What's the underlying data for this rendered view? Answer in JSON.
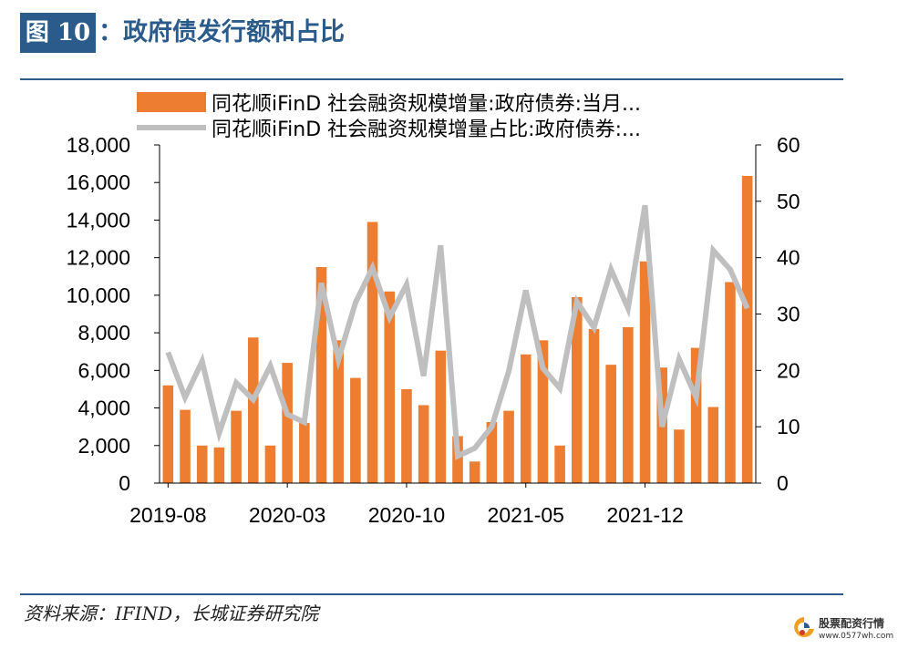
{
  "header": {
    "figure_label": "图 10",
    "colon": "：",
    "title": "政府债发行额和占比"
  },
  "source": "资料来源：IFIND，长城证券研究院",
  "watermark": {
    "name": "股票配资行情",
    "url": "www.0577wh.com"
  },
  "colors": {
    "brand": "#2b5b8a",
    "bar": "#ed7d31",
    "line": "#bfbfbf"
  },
  "chart_data": {
    "type": "bar",
    "x_ticks": [
      "2019-08",
      "2020-03",
      "2020-10",
      "2021-05",
      "2021-12"
    ],
    "y_left": {
      "lim": [
        0,
        18000
      ],
      "ticks": [
        "0",
        "2,000",
        "4,000",
        "6,000",
        "8,000",
        "10,000",
        "12,000",
        "14,000",
        "16,000",
        "18,000"
      ]
    },
    "y_right": {
      "lim": [
        0,
        60
      ],
      "ticks": [
        "0",
        "10",
        "20",
        "30",
        "40",
        "50",
        "60"
      ]
    },
    "legend": {
      "position": "top"
    },
    "series": [
      {
        "name": "同花顺iFinD 社会融资规模增量:政府债券:当月...",
        "type": "bar",
        "axis": "left",
        "values": [
          5200,
          3900,
          2000,
          1900,
          3850,
          7750,
          2000,
          6400,
          3200,
          11500,
          7600,
          5600,
          13900,
          10200,
          5000,
          4150,
          7050,
          2500,
          1150,
          3250,
          3850,
          6850,
          7600,
          2000,
          9900,
          8200,
          6300,
          8300,
          11800,
          6150,
          2850,
          7200,
          4050,
          10700,
          16350
        ]
      },
      {
        "name": "同花顺iFinD 社会融资规模增量占比:政府债券:...",
        "type": "line",
        "axis": "right",
        "values": [
          23.2,
          15.2,
          21.6,
          8.9,
          17.8,
          14.8,
          20.8,
          12.2,
          10.8,
          35.5,
          21.9,
          32.0,
          38.2,
          29.4,
          35.2,
          19.0,
          42.2,
          4.8,
          6.2,
          10.0,
          19.9,
          34.2,
          20.4,
          16.8,
          32.2,
          27.6,
          37.9,
          31.0,
          49.3,
          10.0,
          22.0,
          15.2,
          41.3,
          37.9,
          31.0
        ]
      }
    ]
  }
}
